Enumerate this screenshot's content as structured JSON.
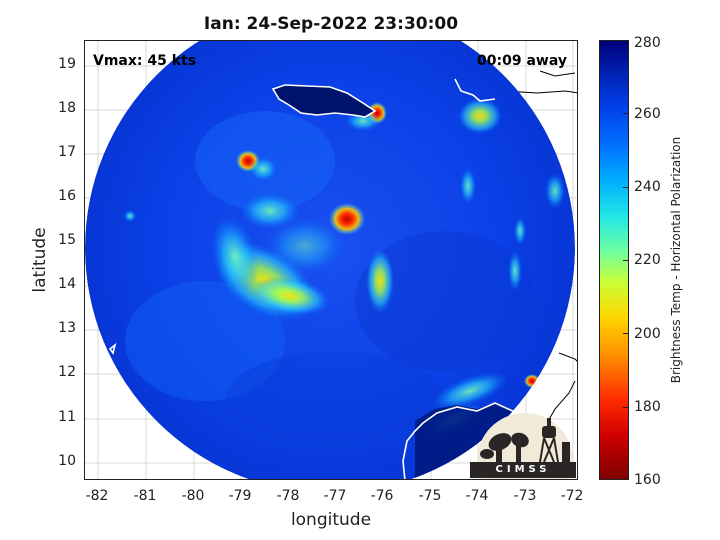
{
  "title": "Ian: 24-Sep-2022 23:30:00",
  "vmax_label": "Vmax: 45 kts",
  "time_away_label": "00:09 away",
  "axes": {
    "xlabel": "longitude",
    "ylabel": "latitude",
    "x_ticks": [
      "-82",
      "-81",
      "-80",
      "-79",
      "-78",
      "-77",
      "-76",
      "-75",
      "-74",
      "-73",
      "-72"
    ],
    "y_ticks": [
      "19",
      "18",
      "17",
      "16",
      "15",
      "14",
      "13",
      "12",
      "11",
      "10"
    ],
    "xlim": [
      -82.2,
      -71.8
    ],
    "ylim": [
      9.6,
      19.5
    ]
  },
  "colorbar": {
    "label": "Brightness Temp - Horizontal Polarization",
    "ticks": [
      "280",
      "260",
      "240",
      "220",
      "200",
      "180",
      "160"
    ],
    "range": [
      160,
      280
    ],
    "colormap": "jet"
  },
  "logo": {
    "text": "CIMSS"
  }
}
